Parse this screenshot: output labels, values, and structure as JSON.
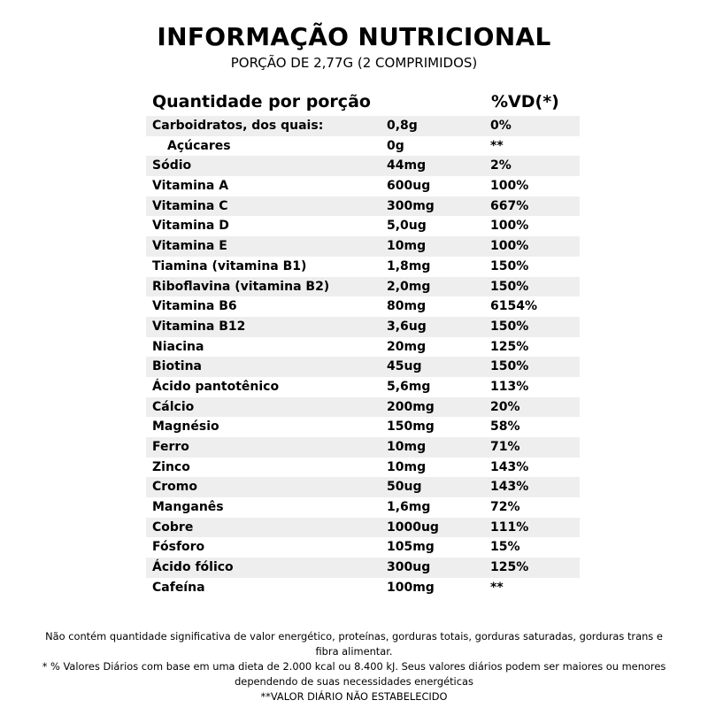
{
  "header": {
    "title": "INFORMAÇÃO NUTRICIONAL",
    "subtitle": "PORÇÃO DE 2,77G (2 COMPRIMIDOS)"
  },
  "table": {
    "col_label": "Quantidade por porção",
    "col_vd": "%VD(*)",
    "rows": [
      {
        "name": "Carboidratos, dos quais:",
        "amount": "0,8g",
        "vd": "0%"
      },
      {
        "name": "Açúcares",
        "amount": "0g",
        "vd": "**"
      },
      {
        "name": "Sódio",
        "amount": "44mg",
        "vd": "2%"
      },
      {
        "name": "Vitamina A",
        "amount": "600ug",
        "vd": "100%"
      },
      {
        "name": "Vitamina C",
        "amount": "300mg",
        "vd": "667%"
      },
      {
        "name": "Vitamina D",
        "amount": "5,0ug",
        "vd": "100%"
      },
      {
        "name": "Vitamina E",
        "amount": "10mg",
        "vd": "100%"
      },
      {
        "name": "Tiamina (vitamina B1)",
        "amount": "1,8mg",
        "vd": "150%"
      },
      {
        "name": "Riboflavina (vitamina B2)",
        "amount": "2,0mg",
        "vd": "150%"
      },
      {
        "name": "Vitamina B6",
        "amount": "80mg",
        "vd": "6154%"
      },
      {
        "name": "Vitamina B12",
        "amount": "3,6ug",
        "vd": "150%"
      },
      {
        "name": "Niacina",
        "amount": "20mg",
        "vd": "125%"
      },
      {
        "name": "Biotina",
        "amount": "45ug",
        "vd": "150%"
      },
      {
        "name": "Ácido pantotênico",
        "amount": "5,6mg",
        "vd": "113%"
      },
      {
        "name": "Cálcio",
        "amount": "200mg",
        "vd": "20%"
      },
      {
        "name": "Magnésio",
        "amount": "150mg",
        "vd": "58%"
      },
      {
        "name": "Ferro",
        "amount": "10mg",
        "vd": "71%"
      },
      {
        "name": "Zinco",
        "amount": "10mg",
        "vd": "143%"
      },
      {
        "name": "Cromo",
        "amount": "50ug",
        "vd": "143%"
      },
      {
        "name": "Manganês",
        "amount": "1,6mg",
        "vd": "72%"
      },
      {
        "name": "Cobre",
        "amount": "1000ug",
        "vd": "111%"
      },
      {
        "name": "Fósforo",
        "amount": "105mg",
        "vd": "15%"
      },
      {
        "name": "Ácido fólico",
        "amount": "300ug",
        "vd": "125%"
      },
      {
        "name": "Cafeína",
        "amount": "100mg",
        "vd": "**"
      }
    ]
  },
  "footer": {
    "line1": "Não contém quantidade significativa de valor energético, proteínas, gorduras totais, gorduras saturadas, gorduras trans e fibra alimentar.",
    "line2": "* % Valores Diários com base em uma dieta de 2.000 kcal ou 8.400 kJ. Seus valores diários podem ser maiores ou menores dependendo de suas necessidades energéticas",
    "line3": "**VALOR DIÁRIO NÃO ESTABELECIDO"
  },
  "colors": {
    "row_shade": "#eeeeee",
    "text": "#000000",
    "background": "#ffffff"
  }
}
